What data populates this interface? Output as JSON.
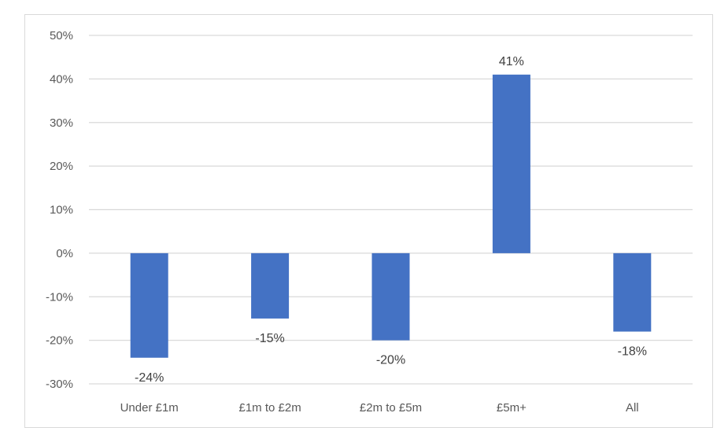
{
  "chart_data": {
    "type": "bar",
    "title": "",
    "xlabel": "",
    "ylabel": "",
    "categories": [
      "Under £1m",
      "£1m to £2m",
      "£2m to £5m",
      "£5m+",
      "All"
    ],
    "values": [
      -24,
      -15,
      -20,
      41,
      -18
    ],
    "data_labels": [
      "-24%",
      "-15%",
      "-20%",
      "41%",
      "-18%"
    ],
    "ylim": [
      -30,
      50
    ],
    "y_ticks": [
      50,
      40,
      30,
      20,
      10,
      0,
      -10,
      -20,
      -30
    ],
    "y_tick_labels": [
      "50%",
      "40%",
      "30%",
      "20%",
      "10%",
      "0%",
      "-10%",
      "-20%",
      "-30%"
    ],
    "grid": true,
    "legend": "none",
    "bar_color": "#4472c4",
    "grid_color": "#d9d9d9"
  }
}
